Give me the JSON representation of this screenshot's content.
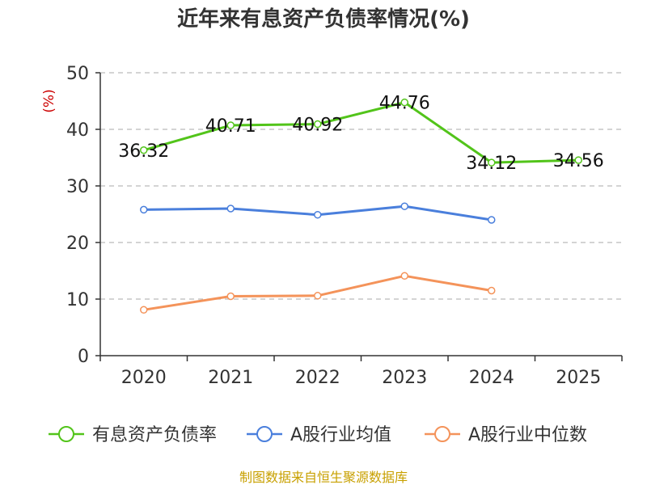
{
  "chart_data": {
    "type": "line",
    "title": "近年来有息资产负债率情况(%)",
    "ylabel": "(%)",
    "xlabel": "",
    "categories": [
      "2020",
      "2021",
      "2022",
      "2023",
      "2024",
      "2025"
    ],
    "ylim": [
      0,
      50
    ],
    "yticks": [
      0,
      10,
      20,
      30,
      40,
      50
    ],
    "grid": true,
    "legend_position": "bottom",
    "series": [
      {
        "name": "有息资产负债率",
        "color": "#52c41a",
        "values": [
          36.32,
          40.71,
          40.92,
          44.76,
          34.12,
          34.56
        ],
        "labels": [
          "36.32",
          "40.71",
          "40.92",
          "44.76",
          "34.12",
          "34.56"
        ]
      },
      {
        "name": "A股行业均值",
        "color": "#4a7fdc",
        "values": [
          25.8,
          26.0,
          24.9,
          26.4,
          24.0,
          null
        ]
      },
      {
        "name": "A股行业中位数",
        "color": "#f4935a",
        "values": [
          8.1,
          10.5,
          10.6,
          14.1,
          11.5,
          null
        ]
      }
    ],
    "source": "制图数据来自恒生聚源数据库"
  }
}
